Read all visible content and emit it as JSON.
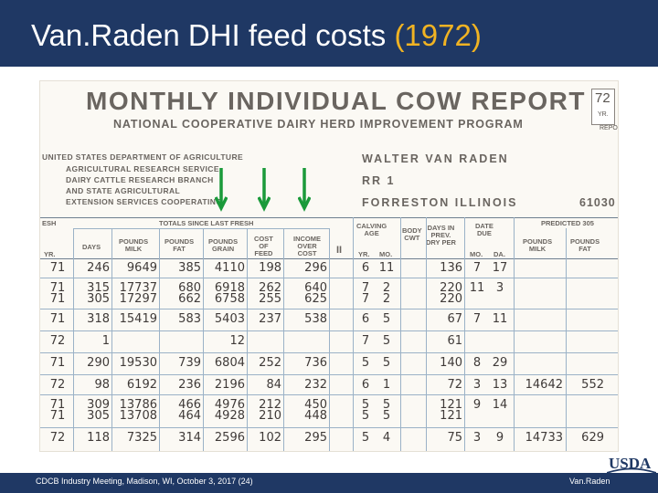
{
  "slide": {
    "title_main": "Van.Raden DHI feed costs",
    "title_year": "(1972)",
    "footer_left": "CDCB Industry Meeting, Madison, WI, October 3, 2017 (24)",
    "footer_right": "Van.Raden",
    "logo_text": "USDA",
    "colors": {
      "title_bar": "#1f3864",
      "year": "#f0b323",
      "arrow": "#1a9a3a"
    }
  },
  "report": {
    "title": "MONTHLY INDIVIDUAL COW REPORT",
    "subtitle": "NATIONAL COOPERATIVE DAIRY HERD IMPROVEMENT PROGRAM",
    "year_box": "72",
    "year_box_label": "YR.",
    "year_box_suffix": "REPO",
    "agency_lines": [
      "UNITED STATES DEPARTMENT OF AGRICULTURE",
      "AGRICULTURAL RESEARCH SERVICE",
      "DAIRY CATTLE RESEARCH BRANCH",
      "AND STATE AGRICULTURAL",
      "EXTENSION SERVICES COOPERATING"
    ],
    "owner_name": "WALTER VAN RADEN",
    "owner_route": "RR 1",
    "owner_town": "FORRESTON ILLINOIS",
    "owner_zip": "61030",
    "header_groups": {
      "fresh": "ESH",
      "totals": "TOTALS SINCE LAST FRESH",
      "calving": "CALVING\nAGE",
      "body": "BODY\nCWT",
      "days_in": "DAYS IN\nPREV.\nDRY PER",
      "date_due": "DATE\nDUE",
      "predicted": "PREDICTED 305"
    },
    "col_headers": {
      "yr": "YR.",
      "days": "DAYS",
      "milk": "POUNDS\nMILK",
      "fat": "POUNDS\nFAT",
      "grain": "POUNDS\nGRAIN",
      "cost": "COST\nOF\nFEED",
      "income": "INCOME\nOVER\nCOST",
      "ii": "II",
      "cyr": "YR.",
      "cmo": "MO.",
      "dmo": "MO.",
      "dda": "DA.",
      "pmilk": "POUNDS\nMILK",
      "pfat": "POUNDS\nFAT"
    },
    "rows": [
      {
        "yr": "71",
        "days": "246",
        "milk": "9649",
        "fat": "385",
        "grain": "4110",
        "cost": "198",
        "income": "296",
        "cyr": "6",
        "cmo": "11",
        "dry": "136",
        "dmo": "7",
        "dda": "17",
        "pmilk": "",
        "pfat": ""
      },
      {
        "yr": "71",
        "days": "315",
        "milk": "17737",
        "fat": "680",
        "grain": "6918",
        "cost": "262",
        "income": "640",
        "cyr": "7",
        "cmo": "2",
        "dry": "220",
        "dmo": "11",
        "dda": "3",
        "pmilk": "",
        "pfat": ""
      },
      {
        "yr": "71",
        "days": "305",
        "milk": "17297",
        "fat": "662",
        "grain": "6758",
        "cost": "255",
        "income": "625",
        "cyr": "7",
        "cmo": "2",
        "dry": "220",
        "dmo": "",
        "dda": "",
        "pmilk": "",
        "pfat": ""
      },
      {
        "yr": "71",
        "days": "318",
        "milk": "15419",
        "fat": "583",
        "grain": "5403",
        "cost": "237",
        "income": "538",
        "cyr": "6",
        "cmo": "5",
        "dry": "67",
        "dmo": "7",
        "dda": "11",
        "pmilk": "",
        "pfat": ""
      },
      {
        "yr": "72",
        "days": "1",
        "milk": "",
        "fat": "",
        "grain": "12",
        "cost": "",
        "income": "",
        "cyr": "7",
        "cmo": "5",
        "dry": "61",
        "dmo": "",
        "dda": "",
        "pmilk": "",
        "pfat": ""
      },
      {
        "yr": "71",
        "days": "290",
        "milk": "19530",
        "fat": "739",
        "grain": "6804",
        "cost": "252",
        "income": "736",
        "cyr": "5",
        "cmo": "5",
        "dry": "140",
        "dmo": "8",
        "dda": "29",
        "pmilk": "",
        "pfat": ""
      },
      {
        "yr": "72",
        "days": "98",
        "milk": "6192",
        "fat": "236",
        "grain": "2196",
        "cost": "84",
        "income": "232",
        "cyr": "6",
        "cmo": "1",
        "dry": "72",
        "dmo": "3",
        "dda": "13",
        "pmilk": "14642",
        "pfat": "552"
      },
      {
        "yr": "71",
        "days": "309",
        "milk": "13786",
        "fat": "466",
        "grain": "4976",
        "cost": "212",
        "income": "450",
        "cyr": "5",
        "cmo": "5",
        "dry": "121",
        "dmo": "9",
        "dda": "14",
        "pmilk": "",
        "pfat": ""
      },
      {
        "yr": "71",
        "days": "305",
        "milk": "13708",
        "fat": "464",
        "grain": "4928",
        "cost": "210",
        "income": "448",
        "cyr": "5",
        "cmo": "5",
        "dry": "121",
        "dmo": "",
        "dda": "",
        "pmilk": "",
        "pfat": ""
      },
      {
        "yr": "72",
        "days": "118",
        "milk": "7325",
        "fat": "314",
        "grain": "2596",
        "cost": "102",
        "income": "295",
        "cyr": "5",
        "cmo": "4",
        "dry": "75",
        "dmo": "3",
        "dda": "9",
        "pmilk": "14733",
        "pfat": "629"
      }
    ]
  }
}
